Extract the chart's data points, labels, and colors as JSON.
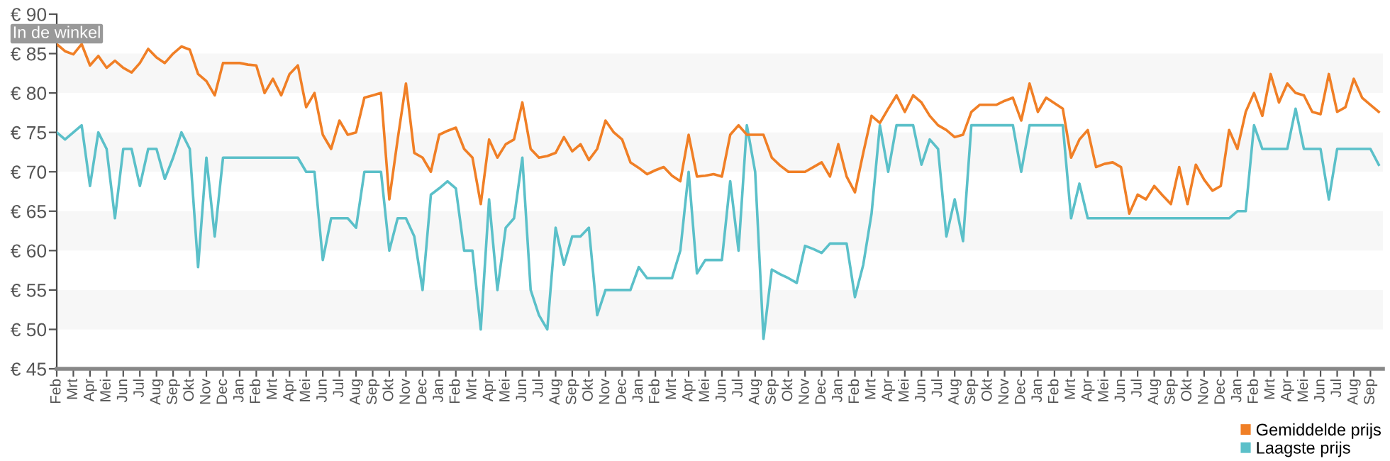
{
  "chart_data": {
    "type": "line",
    "annotations": [
      "In de winkel"
    ],
    "categories": [
      "Feb",
      null,
      "Mrt",
      null,
      "Apr",
      null,
      "Mei",
      null,
      "Jun",
      null,
      "Jul",
      null,
      "Aug",
      null,
      "Sep",
      null,
      "Okt",
      null,
      "Nov",
      null,
      "Dec",
      null,
      "Jan",
      null,
      "Feb",
      null,
      "Mrt",
      null,
      "Apr",
      null,
      "Mei",
      null,
      "Jun",
      null,
      "Jul",
      null,
      "Aug",
      null,
      "Sep",
      null,
      "Okt",
      null,
      "Nov",
      null,
      "Dec",
      null,
      "Jan",
      null,
      "Feb",
      null,
      "Mrt",
      null,
      "Apr",
      null,
      "Mei",
      null,
      "Jun",
      null,
      "Jul",
      null,
      "Aug",
      null,
      "Sep",
      null,
      "Okt",
      null,
      "Nov",
      null,
      "Dec",
      null,
      "Jan",
      null,
      "Feb",
      null,
      "Mrt",
      null,
      "Apr",
      null,
      "Mei",
      null,
      "Jun",
      null,
      "Jul",
      null,
      "Aug",
      null,
      "Sep",
      null,
      "Okt",
      null,
      "Nov",
      null,
      "Dec",
      null,
      "Jan",
      null,
      "Feb",
      null,
      "Mrt",
      null,
      "Apr",
      null,
      "Mei",
      null,
      "Jun",
      null,
      "Jul",
      null,
      "Aug",
      null,
      "Sep",
      null,
      "Okt",
      null,
      "Nov",
      null,
      "Dec",
      null,
      "Jan",
      null,
      "Feb",
      null,
      "Mrt",
      null,
      "Apr",
      null,
      "Mei",
      null,
      "Jun",
      null,
      "Jul",
      null,
      "Aug",
      null,
      "Sep",
      null,
      "Okt",
      null,
      "Nov",
      null,
      "Dec",
      null,
      "Jan",
      null,
      "Feb",
      null,
      "Mrt",
      null,
      "Apr",
      null,
      "Mei",
      null,
      "Jun",
      null,
      "Jul",
      null,
      "Aug",
      null,
      "Sep",
      null
    ],
    "ylim": [
      45,
      90
    ],
    "yticks": [
      {
        "value": 45,
        "label": "€ 45"
      },
      {
        "value": 50,
        "label": "€ 50"
      },
      {
        "value": 55,
        "label": "€ 55"
      },
      {
        "value": 60,
        "label": "€ 60"
      },
      {
        "value": 65,
        "label": "€ 65"
      },
      {
        "value": 70,
        "label": "€ 70"
      },
      {
        "value": 75,
        "label": "€ 75"
      },
      {
        "value": 80,
        "label": "€ 80"
      },
      {
        "value": 85,
        "label": "€ 85"
      },
      {
        "value": 90,
        "label": "€ 90"
      }
    ],
    "bands": [
      {
        "axis": "y",
        "from": 50,
        "to": 55,
        "color": "#f7f7f7"
      },
      {
        "axis": "y",
        "from": 60,
        "to": 65,
        "color": "#f7f7f7"
      },
      {
        "axis": "y",
        "from": 70,
        "to": 75,
        "color": "#f7f7f7"
      },
      {
        "axis": "y",
        "from": 80,
        "to": 85,
        "color": "#f7f7f7"
      }
    ],
    "legend": "bottom right",
    "marker": "none",
    "line_style": "solid",
    "series": [
      {
        "name": "Gemiddelde prijs",
        "color": "#f07f26",
        "values": [
          86.2,
          85.3,
          84.9,
          86.2,
          83.5,
          84.7,
          83.2,
          84.1,
          83.2,
          82.6,
          83.8,
          85.6,
          84.5,
          83.8,
          85,
          85.9,
          85.5,
          82.4,
          81.5,
          79.7,
          83.8,
          83.8,
          83.8,
          83.6,
          83.5,
          80,
          81.8,
          79.7,
          82.4,
          83.5,
          78.2,
          80,
          74.7,
          72.9,
          76.5,
          74.7,
          75,
          79.4,
          79.7,
          80,
          66.5,
          74.1,
          81.2,
          72.4,
          71.8,
          70,
          74.7,
          75.2,
          75.6,
          72.9,
          71.8,
          65.9,
          74.1,
          71.8,
          73.5,
          74.1,
          78.8,
          72.9,
          71.8,
          72,
          72.4,
          74.4,
          72.6,
          73.5,
          71.5,
          72.9,
          76.5,
          75,
          74.1,
          71.2,
          70.5,
          69.7,
          70.2,
          70.6,
          69.5,
          68.8,
          74.7,
          69.4,
          69.5,
          69.7,
          69.4,
          74.7,
          75.9,
          74.7,
          74.7,
          74.7,
          71.8,
          70.8,
          70,
          70,
          70,
          70.6,
          71.2,
          69.4,
          73.5,
          69.4,
          67.4,
          72.4,
          77.1,
          76.2,
          78,
          79.7,
          77.6,
          79.7,
          78.8,
          77.1,
          75.9,
          75.3,
          74.4,
          74.7,
          77.6,
          78.5,
          78.5,
          78.5,
          79,
          79.4,
          76.5,
          81.2,
          77.6,
          79.4,
          78.7,
          78,
          71.8,
          74.1,
          75.3,
          70.6,
          71,
          71.2,
          70.6,
          64.7,
          67.1,
          66.5,
          68.2,
          67,
          65.9,
          70.6,
          65.9,
          70.9,
          69,
          67.6,
          68.2,
          75.3,
          72.9,
          77.6,
          80,
          77.1,
          82.4,
          78.8,
          81.2,
          80,
          79.7,
          77.6,
          77.3,
          82.4,
          77.6,
          78.2,
          81.8,
          79.4,
          78.5,
          77.6
        ]
      },
      {
        "name": "Laagste prijs",
        "color": "#5bc0c9",
        "values": [
          75,
          74.1,
          75,
          75.9,
          68.2,
          75,
          72.9,
          64.1,
          72.9,
          72.9,
          68.2,
          72.9,
          72.9,
          69.1,
          71.8,
          75,
          72.9,
          57.9,
          71.8,
          61.8,
          71.8,
          71.8,
          71.8,
          71.8,
          71.8,
          71.8,
          71.8,
          71.8,
          71.8,
          71.8,
          70,
          70,
          58.8,
          64.1,
          64.1,
          64.1,
          62.9,
          70,
          70,
          70,
          60,
          64.1,
          64.1,
          61.8,
          55,
          67.1,
          67.9,
          68.8,
          67.9,
          60,
          60,
          50,
          66.5,
          55,
          62.9,
          64.1,
          71.8,
          55,
          51.8,
          50,
          62.9,
          58.2,
          61.8,
          61.8,
          62.9,
          51.8,
          55,
          55,
          55,
          55,
          57.9,
          56.5,
          56.5,
          56.5,
          56.5,
          60,
          70,
          57.1,
          58.8,
          58.8,
          58.8,
          68.8,
          60,
          75.9,
          70,
          48.8,
          57.6,
          57,
          56.5,
          55.9,
          60.6,
          60.2,
          59.7,
          60.9,
          60.9,
          60.9,
          54.1,
          58.2,
          64.7,
          75.9,
          70,
          75.9,
          75.9,
          75.9,
          70.9,
          74.1,
          72.9,
          61.8,
          66.5,
          61.2,
          75.9,
          75.9,
          75.9,
          75.9,
          75.9,
          75.9,
          70,
          75.9,
          75.9,
          75.9,
          75.9,
          75.9,
          64.1,
          68.5,
          64.1,
          64.1,
          64.1,
          64.1,
          64.1,
          64.1,
          64.1,
          64.1,
          64.1,
          64.1,
          64.1,
          64.1,
          64.1,
          64.1,
          64.1,
          64.1,
          64.1,
          64.1,
          65,
          65,
          75.9,
          72.9,
          72.9,
          72.9,
          72.9,
          78,
          72.9,
          72.9,
          72.9,
          66.5,
          72.9,
          72.9,
          72.9,
          72.9,
          72.9,
          70.9
        ]
      }
    ]
  }
}
